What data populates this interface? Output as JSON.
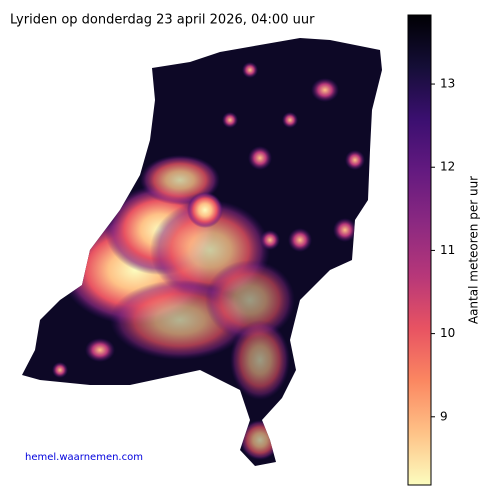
{
  "title": "Lyriden op donderdag 23 april 2026, 04:00 uur",
  "credit": "hemel.waarnemen.com",
  "colorbar": {
    "label": "Aantal meteoren per uur",
    "lim": [
      8.18,
      13.83
    ],
    "ticks": [
      9,
      10,
      11,
      12,
      13
    ],
    "colors": [
      "#fcfdbf",
      "#fec287",
      "#fb8761",
      "#e85362",
      "#b73779",
      "#8c2981",
      "#641a80",
      "#3b0f70",
      "#150e37",
      "#000004"
    ]
  }
}
